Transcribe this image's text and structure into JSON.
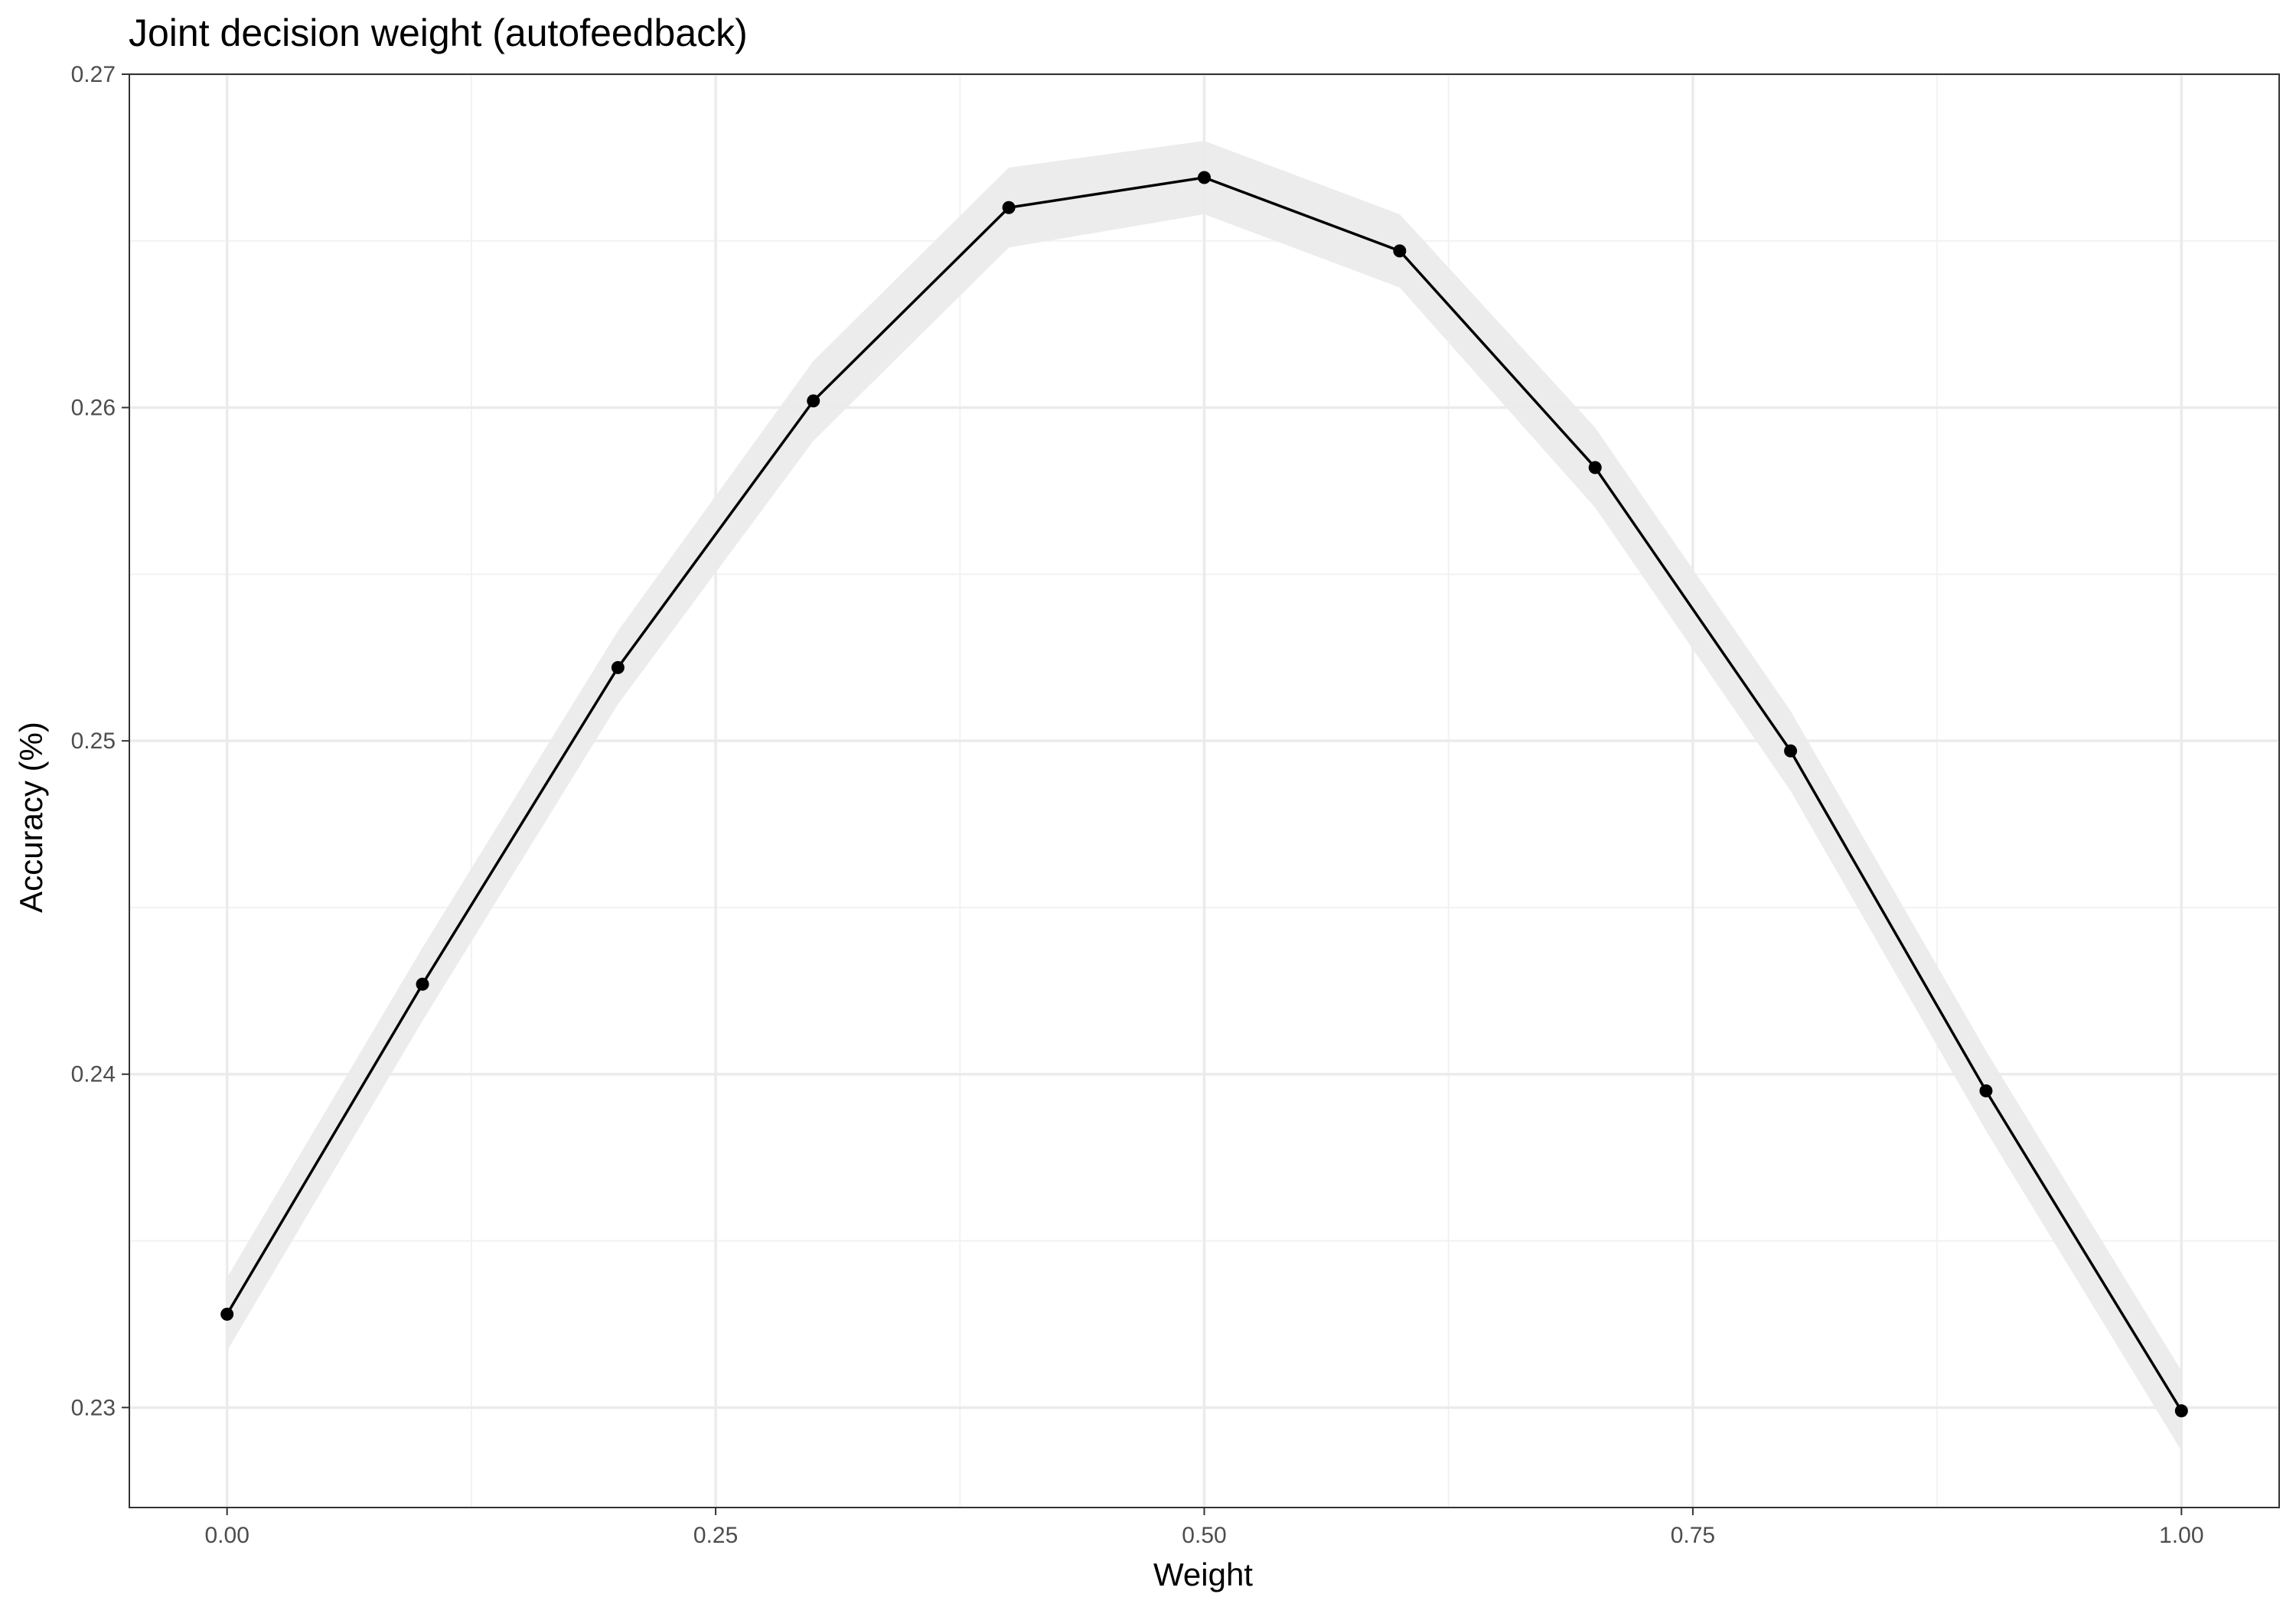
{
  "chart_data": {
    "type": "line",
    "title": "Joint decision weight (autofeedback)",
    "xlabel": "Weight",
    "ylabel": "Accuracy (%)",
    "xlim": [
      -0.05,
      1.05
    ],
    "ylim": [
      0.227,
      0.27
    ],
    "x_ticks": [
      0.0,
      0.25,
      0.5,
      0.75,
      1.0
    ],
    "x_tick_labels": [
      "0.00",
      "0.25",
      "0.50",
      "0.75",
      "1.00"
    ],
    "y_ticks": [
      0.23,
      0.24,
      0.25,
      0.26,
      0.27
    ],
    "y_tick_labels": [
      "0.23",
      "0.24",
      "0.25",
      "0.26",
      "0.27"
    ],
    "grid": true,
    "legend": "none",
    "series": [
      {
        "x": [
          0.0,
          0.1,
          0.2,
          0.3,
          0.4,
          0.5,
          0.6,
          0.7,
          0.8,
          0.9,
          1.0
        ],
        "values": [
          0.2328,
          0.2427,
          0.2522,
          0.2602,
          0.266,
          0.2669,
          0.2647,
          0.2582,
          0.2497,
          0.2395,
          0.2299
        ],
        "lower": [
          0.2317,
          0.2416,
          0.2511,
          0.259,
          0.2648,
          0.2658,
          0.2636,
          0.257,
          0.2485,
          0.2383,
          0.2287
        ],
        "upper": [
          0.2339,
          0.2438,
          0.2533,
          0.2614,
          0.2672,
          0.268,
          0.2658,
          0.2594,
          0.2509,
          0.2407,
          0.2311
        ],
        "color": "#000000",
        "band_color": "#ebebeb"
      }
    ]
  }
}
